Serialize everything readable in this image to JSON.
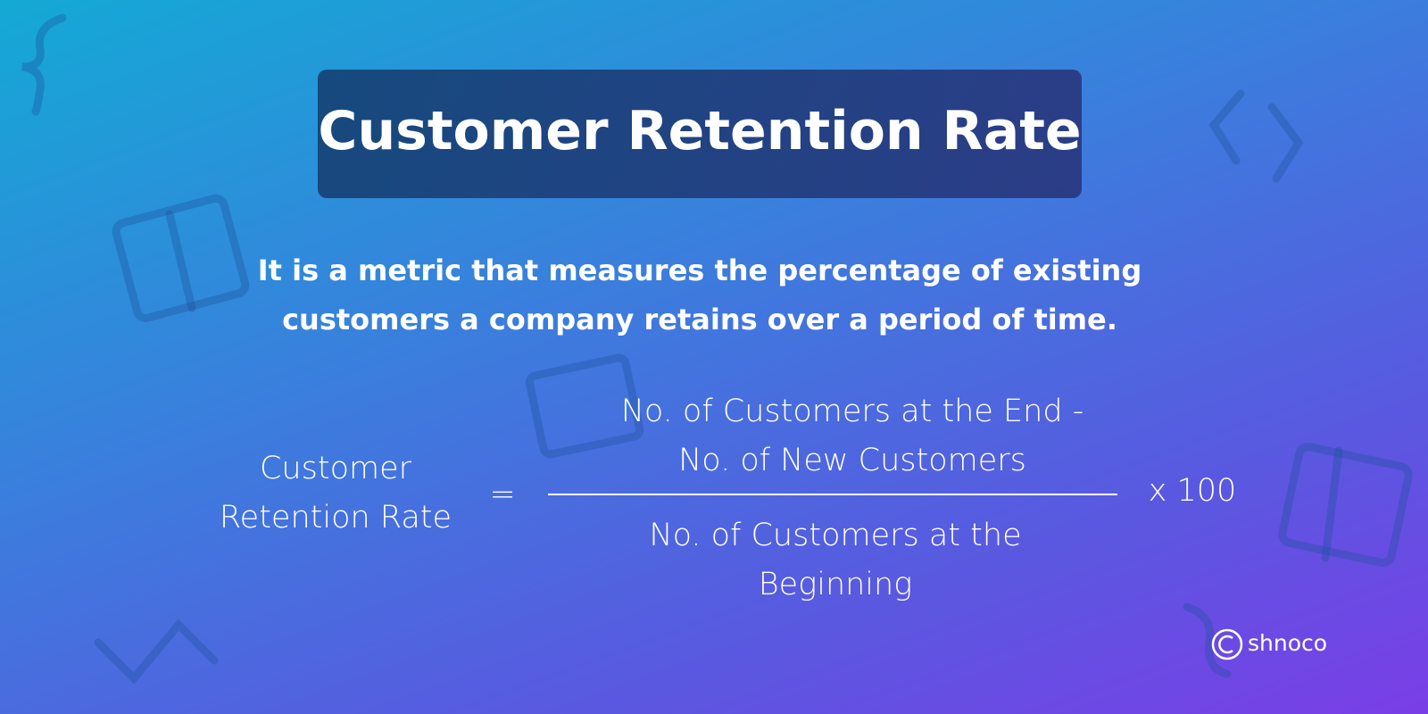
{
  "header": {
    "title": "Customer Retention Rate"
  },
  "description": {
    "lines": [
      "It is a metric that measures the percentage of existing",
      "customers a company retains over a period of time."
    ]
  },
  "formula": {
    "lhs": [
      "Customer",
      "Retention Rate"
    ],
    "equals": "=",
    "numerator": [
      "No. of Customers at the End -",
      "No. of New Customers"
    ],
    "denominator": [
      "No. of Customers at the",
      "Beginning"
    ],
    "multiplier": "x 100"
  },
  "brand": {
    "name": "shnoco"
  }
}
